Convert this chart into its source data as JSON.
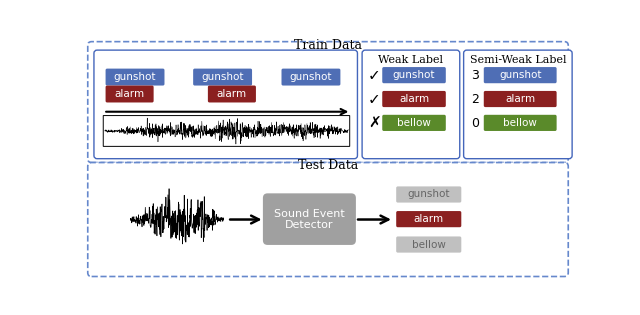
{
  "blue_color": "#4f6eb5",
  "red_color": "#8b2020",
  "green_color": "#5a8a2a",
  "light_gray": "#c0c0c0",
  "sed_gray": "#a0a0a0",
  "border_blue": "#4466bb",
  "dashed_blue": "#6688cc",
  "title_train": "Train Data",
  "title_test": "Test Data",
  "weak_label_title": "Weak Label",
  "semi_weak_label_title": "Semi-Weak Label",
  "detector_label": "Sound Event\nDetector",
  "labels": [
    "gunshot",
    "alarm",
    "bellow"
  ],
  "semi_weak_counts": [
    "3",
    "2",
    "0"
  ],
  "weak_checks": [
    "✓",
    "✓",
    "✗"
  ]
}
